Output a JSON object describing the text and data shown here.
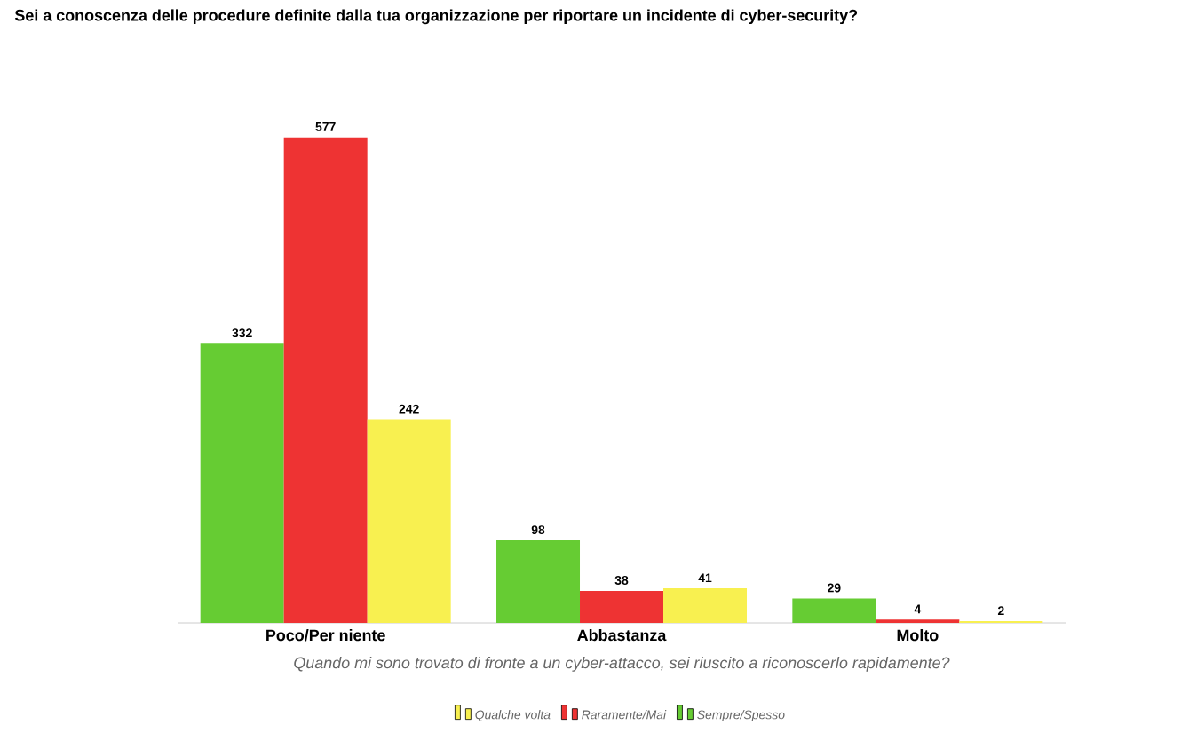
{
  "chart_data": {
    "type": "bar",
    "title": "Sei a conoscenza delle procedure definite dalla tua organizzazione per riportare un incidente di cyber-security?",
    "xlabel": "Quando mi sono trovato di fronte a un cyber-attacco, sei riuscito a riconoscerlo rapidamente?",
    "categories": [
      "Poco/Per niente",
      "Abbastanza",
      "Molto"
    ],
    "series": [
      {
        "name": "Sempre/Spesso",
        "color": "#66cc33",
        "values": [
          332,
          98,
          29
        ]
      },
      {
        "name": "Raramente/Mai",
        "color": "#ee3333",
        "values": [
          577,
          38,
          4
        ]
      },
      {
        "name": "Qualche volta",
        "color": "#f8f050",
        "values": [
          242,
          41,
          2
        ]
      }
    ],
    "data_labels": true,
    "legend": "bottom"
  }
}
